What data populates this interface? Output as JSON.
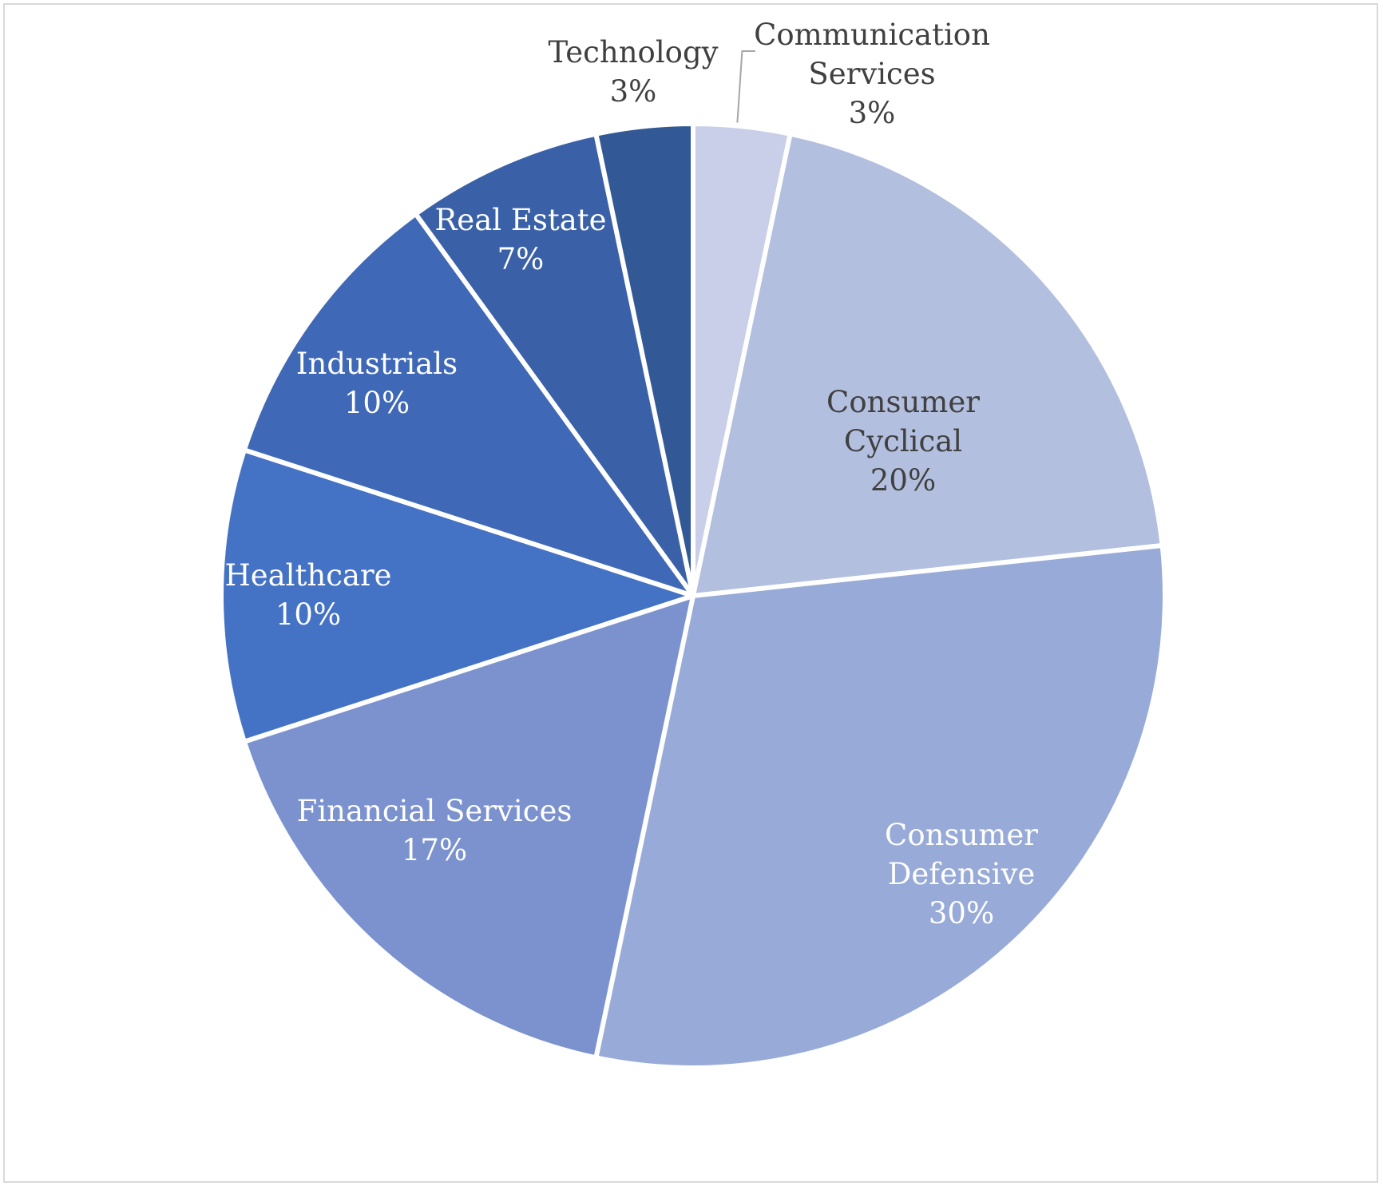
{
  "chart_data": {
    "type": "pie",
    "title": "",
    "start_angle_deg": 0,
    "direction": "clockwise",
    "legend": "none",
    "slices": [
      {
        "name": "Communication Services",
        "label_lines": [
          "Communication",
          "Services"
        ],
        "value": 3.3,
        "pct_label": "3%",
        "color": "#c9cfe8",
        "label_color": "#404040"
      },
      {
        "name": "Consumer Cyclical",
        "label_lines": [
          "Consumer",
          "Cyclical"
        ],
        "value": 20,
        "pct_label": "20%",
        "color": "#b3bfdf",
        "label_color": "#404040"
      },
      {
        "name": "Consumer Defensive",
        "label_lines": [
          "Consumer",
          "Defensive"
        ],
        "value": 30,
        "pct_label": "30%",
        "color": "#98aad7",
        "label_color": "#ffffff"
      },
      {
        "name": "Financial Services",
        "label_lines": [
          "Financial Services"
        ],
        "value": 16.7,
        "pct_label": "17%",
        "color": "#7b92ce",
        "label_color": "#ffffff"
      },
      {
        "name": "Healthcare",
        "label_lines": [
          "Healthcare"
        ],
        "value": 10,
        "pct_label": "10%",
        "color": "#4472c4",
        "label_color": "#ffffff"
      },
      {
        "name": "Industrials",
        "label_lines": [
          "Industrials"
        ],
        "value": 10,
        "pct_label": "10%",
        "color": "#3f68b6",
        "label_color": "#ffffff"
      },
      {
        "name": "Real Estate",
        "label_lines": [
          "Real Estate"
        ],
        "value": 6.7,
        "pct_label": "7%",
        "color": "#3a61a8",
        "label_color": "#ffffff"
      },
      {
        "name": "Technology",
        "label_lines": [
          "Technology"
        ],
        "value": 3.3,
        "pct_label": "3%",
        "color": "#325895",
        "label_color": "#404040"
      }
    ],
    "colors": {
      "slice_border": "#ffffff",
      "leader_line": "#a6a6a6",
      "frame_border": "#d9d9d9"
    }
  }
}
